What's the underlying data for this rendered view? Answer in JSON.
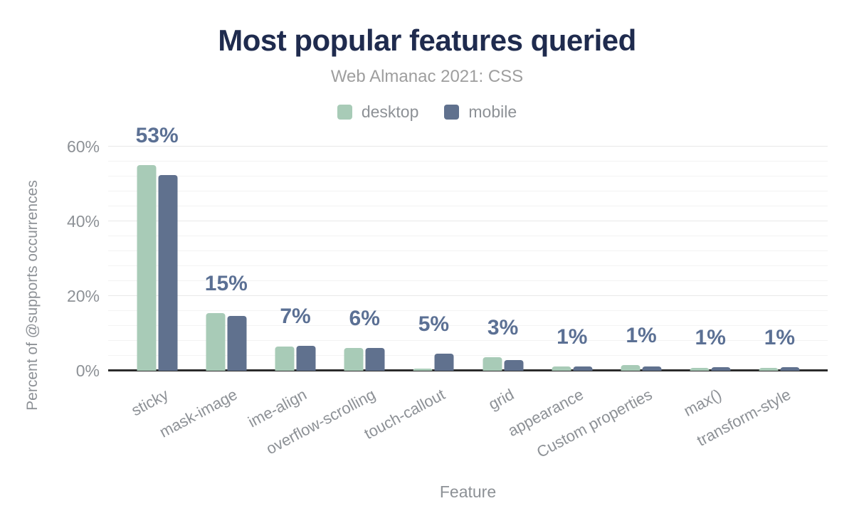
{
  "title": "Most popular features queried",
  "subtitle": "Web Almanac 2021: CSS",
  "legend": {
    "items": [
      {
        "label": "desktop",
        "color": "#a8cbb7"
      },
      {
        "label": "mobile",
        "color": "#60718e"
      }
    ]
  },
  "y_axis": {
    "title": "Percent of @supports occurrences",
    "tick_labels": [
      "0%",
      "20%",
      "40%",
      "60%"
    ],
    "tick_values": [
      0,
      20,
      40,
      60
    ]
  },
  "x_axis": {
    "title": "Feature"
  },
  "chart_data": {
    "type": "bar",
    "title": "Most popular features queried",
    "subtitle": "Web Almanac 2021: CSS",
    "xlabel": "Feature",
    "ylabel": "Percent of @supports occurrences",
    "categories": [
      "sticky",
      "mask-image",
      "ime-align",
      "overflow-scrolling",
      "touch-callout",
      "grid",
      "appearance",
      "Custom properties",
      "max()",
      "transform-style"
    ],
    "series": [
      {
        "name": "desktop",
        "color": "#a8cbb7",
        "values": [
          55.0,
          15.5,
          6.5,
          6.1,
          0.6,
          3.7,
          1.2,
          1.5,
          0.8,
          0.8
        ]
      },
      {
        "name": "mobile",
        "color": "#60718e",
        "values": [
          52.5,
          14.7,
          6.6,
          6.1,
          4.5,
          2.9,
          1.1,
          1.1,
          0.9,
          0.9
        ]
      }
    ],
    "bar_labels": [
      "53%",
      "15%",
      "7%",
      "6%",
      "5%",
      "3%",
      "1%",
      "1%",
      "1%",
      "1%"
    ],
    "ylim": [
      0,
      60
    ],
    "yticks": [
      0,
      20,
      40,
      60
    ],
    "grid": "horizontal, minor every 4%, major every 20%",
    "legend_position": "top center"
  },
  "colors": {
    "desktop": "#a8cbb7",
    "mobile": "#60718e",
    "bar_label": "#5b7094",
    "title": "#1f2b4e",
    "muted_text": "#8d9196",
    "subtitle_text": "#9e9e9e",
    "axis_line": "#2b2b2b"
  }
}
